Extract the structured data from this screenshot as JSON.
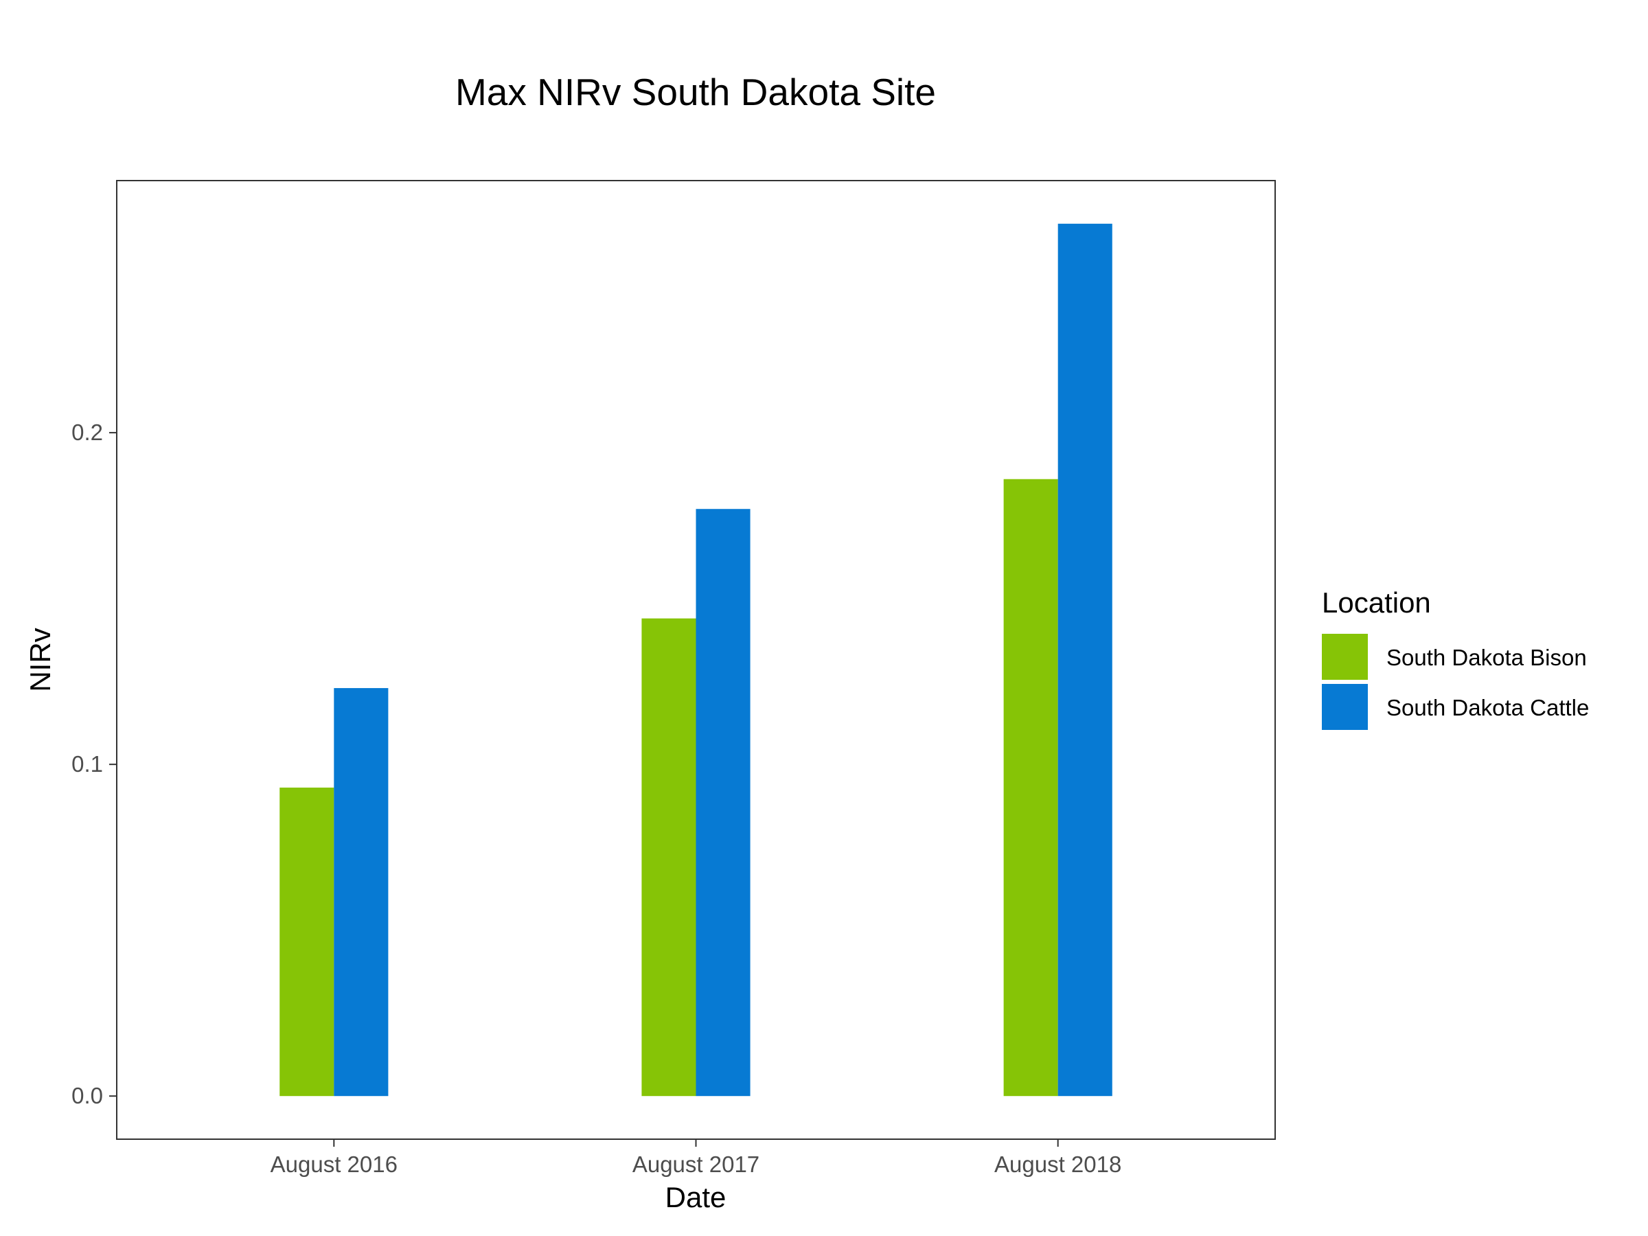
{
  "chart_data": {
    "type": "bar",
    "title": "Max NIRv South Dakota Site",
    "xlabel": "Date",
    "ylabel": "NIRv",
    "categories": [
      "August 2016",
      "August 2017",
      "August 2018"
    ],
    "series": [
      {
        "name": "South Dakota Bison",
        "color": "#86c406",
        "values": [
          0.093,
          0.144,
          0.186
        ]
      },
      {
        "name": "South Dakota Cattle",
        "color": "#077ad3",
        "values": [
          0.123,
          0.177,
          0.263
        ]
      }
    ],
    "ylim": [
      -0.013,
      0.276
    ],
    "yticks": [
      0.0,
      0.1,
      0.2
    ],
    "ytick_labels": [
      "0.0",
      "0.1",
      "0.2"
    ],
    "legend": {
      "title": "Location",
      "position": "right"
    },
    "grid": false
  }
}
